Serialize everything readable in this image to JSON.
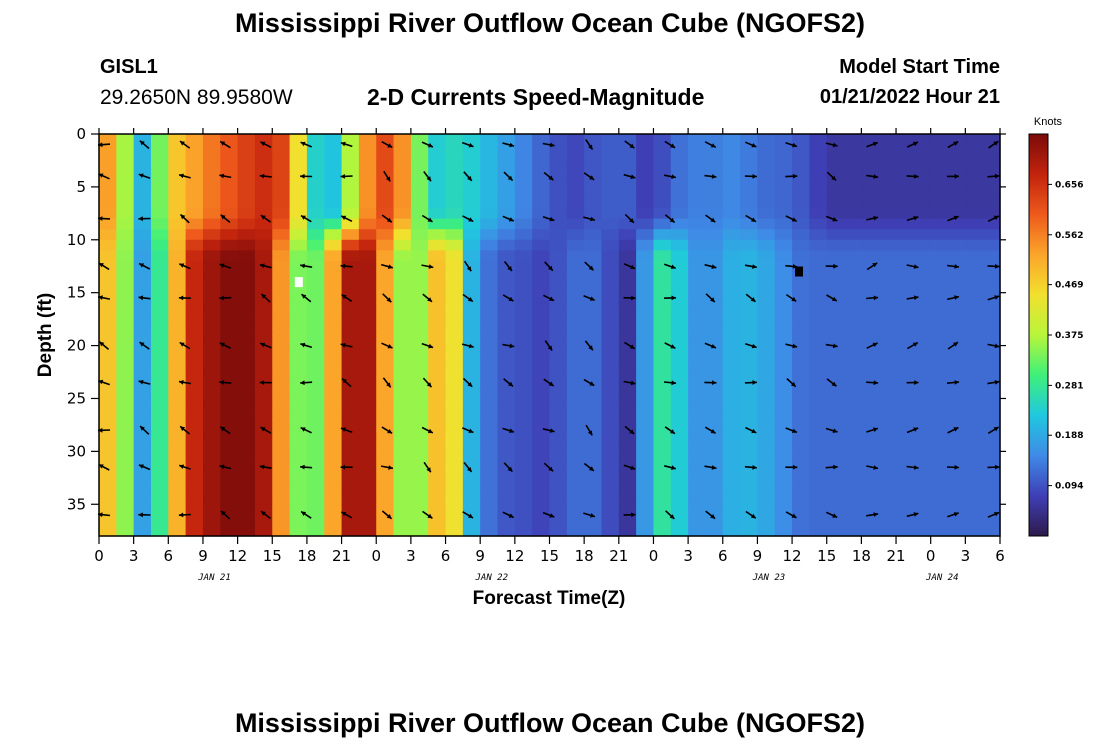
{
  "header": {
    "title": "Mississippi River Outflow Ocean Cube (NGOFS2)",
    "station": "GISL1",
    "coordinates": "29.2650N  89.9580W",
    "subtitle": "2-D Currents Speed-Magnitude",
    "model_start_label": "Model Start Time",
    "model_start_value": "01/21/2022 Hour 21"
  },
  "footer": {
    "title": "Mississippi River Outflow Ocean Cube (NGOFS2)"
  },
  "chart_data": {
    "type": "heatmap",
    "xlabel": "Forecast Time(Z)",
    "ylabel": "Depth (ft)",
    "xlim": [
      0,
      78
    ],
    "ylim": [
      0,
      38
    ],
    "x_tick_labels": [
      "0",
      "3",
      "6",
      "9",
      "12",
      "15",
      "18",
      "21",
      "0",
      "3",
      "6",
      "9",
      "12",
      "15",
      "18",
      "21",
      "0",
      "3",
      "6",
      "9",
      "12",
      "15",
      "18",
      "21",
      "0",
      "3",
      "6"
    ],
    "y_ticks": [
      0,
      5,
      10,
      15,
      20,
      25,
      30,
      35
    ],
    "date_labels": [
      {
        "label": "JAN 21",
        "hour": 10
      },
      {
        "label": "JAN 22",
        "hour": 34
      },
      {
        "label": "JAN 23",
        "hour": 58
      },
      {
        "label": "JAN 24",
        "hour": 73
      }
    ],
    "colorbar": {
      "unit": "Knots",
      "min": 0,
      "max": 0.75,
      "ticks": [
        0.094,
        0.188,
        0.281,
        0.375,
        0.469,
        0.562,
        0.656
      ],
      "colors": [
        "#2d1a4a",
        "#3f3fb5",
        "#3f8ae6",
        "#1fc8df",
        "#3ef07a",
        "#b8f53a",
        "#f2e02e",
        "#fba52a",
        "#ee5a1c",
        "#c2230d",
        "#7b0b0a"
      ]
    },
    "speed_profile_hours": [
      0,
      1,
      2,
      3,
      4,
      5,
      6,
      7,
      8,
      9,
      10,
      11,
      12,
      13,
      14,
      15,
      16,
      17,
      18,
      19,
      20,
      21,
      22,
      23,
      24,
      25,
      26,
      27,
      28,
      29,
      30,
      31,
      32,
      33,
      34,
      35,
      36,
      37,
      38,
      39,
      40,
      41,
      42,
      43,
      44,
      45,
      46,
      47,
      48,
      49,
      50,
      51,
      52,
      53,
      54,
      55,
      56,
      57,
      58,
      59,
      60,
      61,
      62,
      63,
      64,
      65,
      66,
      67,
      68,
      69,
      70,
      71,
      72,
      73,
      74,
      75,
      76,
      77,
      78
    ],
    "speed_upper_knots": [
      0.56,
      0.52,
      0.42,
      0.2,
      0.2,
      0.3,
      0.43,
      0.5,
      0.52,
      0.55,
      0.58,
      0.6,
      0.62,
      0.64,
      0.66,
      0.66,
      0.62,
      0.5,
      0.3,
      0.22,
      0.2,
      0.28,
      0.4,
      0.52,
      0.62,
      0.62,
      0.58,
      0.44,
      0.3,
      0.24,
      0.22,
      0.26,
      0.24,
      0.22,
      0.2,
      0.18,
      0.16,
      0.14,
      0.12,
      0.1,
      0.09,
      0.08,
      0.09,
      0.1,
      0.1,
      0.12,
      0.1,
      0.08,
      0.06,
      0.1,
      0.12,
      0.14,
      0.14,
      0.14,
      0.14,
      0.15,
      0.14,
      0.12,
      0.12,
      0.12,
      0.1,
      0.1,
      0.08,
      0.06
    ],
    "speed_lower_knots": [
      0.5,
      0.48,
      0.4,
      0.2,
      0.17,
      0.25,
      0.38,
      0.55,
      0.66,
      0.7,
      0.72,
      0.74,
      0.74,
      0.74,
      0.72,
      0.66,
      0.5,
      0.35,
      0.3,
      0.34,
      0.48,
      0.66,
      0.72,
      0.72,
      0.66,
      0.48,
      0.36,
      0.34,
      0.36,
      0.48,
      0.52,
      0.42,
      0.22,
      0.14,
      0.12,
      0.1,
      0.1,
      0.09,
      0.08,
      0.08,
      0.1,
      0.12,
      0.12,
      0.12,
      0.1,
      0.05,
      0.06,
      0.14,
      0.25,
      0.28,
      0.25,
      0.18,
      0.16,
      0.16,
      0.18,
      0.2,
      0.2,
      0.2,
      0.18,
      0.16,
      0.14,
      0.12,
      0.12,
      0.12
    ],
    "missing_cells": [
      {
        "hour": 17.3,
        "depth": 14,
        "color": "#ffffff"
      },
      {
        "hour": 60.6,
        "depth": 13,
        "color": "#000000"
      }
    ]
  }
}
